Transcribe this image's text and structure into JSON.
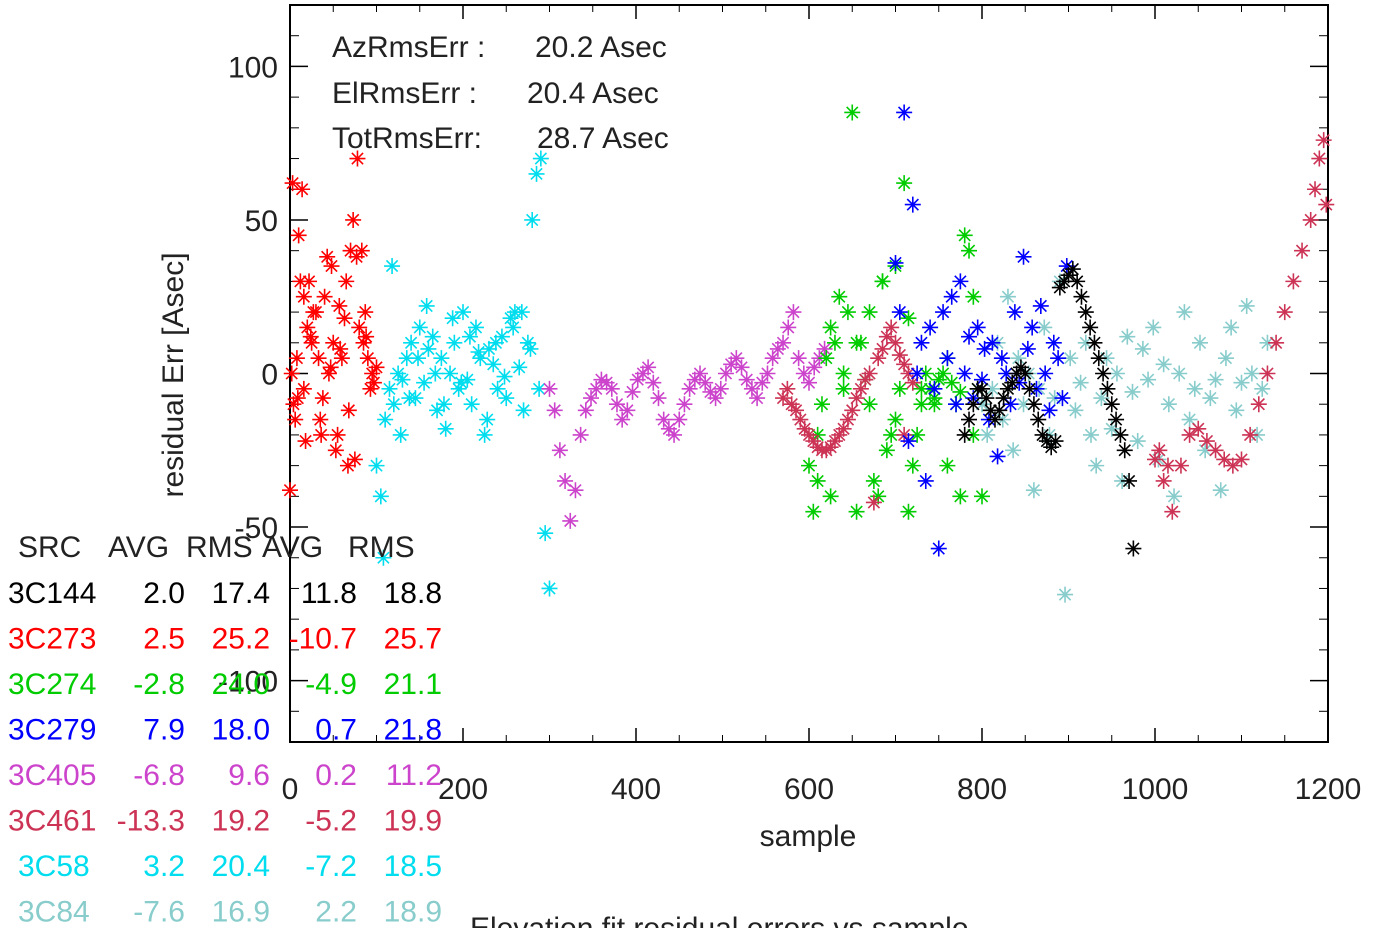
{
  "chart_data": {
    "type": "scatter",
    "title": "Elevation fit residual errors vs sample",
    "xlabel": "sample",
    "ylabel": "residual Err [Asec]",
    "xlim": [
      0,
      1200
    ],
    "ylim": [
      -120,
      120
    ],
    "x_ticks": [
      0,
      200,
      400,
      600,
      800,
      1000,
      1200
    ],
    "y_ticks": [
      -100,
      -50,
      0,
      50,
      100
    ],
    "marker": "asterisk",
    "grid": false,
    "stats": [
      {
        "label": "AzRmsErr :",
        "value": "20.2 Asec"
      },
      {
        "label": "ElRmsErr :",
        "value": "20.4 Asec"
      },
      {
        "label": "TotRmsErr:",
        "value": "28.7 Asec"
      }
    ],
    "table": {
      "headers": [
        "SRC",
        "AVG",
        "RMS",
        "AVG",
        "RMS"
      ],
      "rows": [
        {
          "src": "3C144",
          "az_avg": "2.0",
          "az_rms": "17.4",
          "el_avg": "11.8",
          "el_rms": "18.8",
          "color": "#000000"
        },
        {
          "src": "3C273",
          "az_avg": "2.5",
          "az_rms": "25.2",
          "el_avg": "-10.7",
          "el_rms": "25.7",
          "color": "#ff0000"
        },
        {
          "src": "3C274",
          "az_avg": "-2.8",
          "az_rms": "24.0",
          "el_avg": "-4.9",
          "el_rms": "21.1",
          "color": "#00cc00"
        },
        {
          "src": "3C279",
          "az_avg": "7.9",
          "az_rms": "18.0",
          "el_avg": "0.7",
          "el_rms": "21.8",
          "color": "#0000ff"
        },
        {
          "src": "3C405",
          "az_avg": "-6.8",
          "az_rms": "9.6",
          "el_avg": "0.2",
          "el_rms": "11.2",
          "color": "#cc44cc"
        },
        {
          "src": "3C461",
          "az_avg": "-13.3",
          "az_rms": "19.2",
          "el_avg": "-5.2",
          "el_rms": "19.9",
          "color": "#cc3355"
        },
        {
          "src": "3C58",
          "az_avg": "3.2",
          "az_rms": "20.4",
          "el_avg": "-7.2",
          "el_rms": "18.5",
          "color": "#00ddee"
        },
        {
          "src": "3C84",
          "az_avg": "-7.6",
          "az_rms": "16.9",
          "el_avg": "2.2",
          "el_rms": "18.9",
          "color": "#88cccc"
        }
      ]
    },
    "series": [
      {
        "source": "3C273",
        "color": "#ff0000",
        "x": [
          0,
          4,
          8,
          12,
          16,
          20,
          25,
          30,
          35,
          40,
          45,
          50,
          55,
          60,
          65,
          70,
          75,
          80,
          85,
          90,
          95,
          100,
          3,
          10,
          18,
          27,
          38,
          48,
          58,
          68,
          78,
          88,
          6,
          14,
          22,
          33,
          43,
          53,
          63,
          73,
          83,
          93,
          2,
          9,
          16,
          24,
          36,
          47,
          57,
          67,
          77,
          87,
          97
        ],
        "y": [
          -38,
          -10,
          5,
          30,
          -5,
          15,
          10,
          20,
          -15,
          25,
          0,
          10,
          -20,
          5,
          30,
          40,
          -28,
          15,
          10,
          5,
          0,
          2,
          62,
          45,
          -22,
          20,
          -8,
          35,
          8,
          -12,
          70,
          12,
          -15,
          60,
          30,
          5,
          38,
          -25,
          18,
          50,
          40,
          -5,
          0,
          -8,
          25,
          12,
          -20,
          2,
          22,
          -30,
          38,
          20,
          -3
        ]
      },
      {
        "source": "3C58",
        "color": "#00ddee",
        "x": [
          100,
          105,
          110,
          115,
          120,
          125,
          130,
          135,
          140,
          145,
          150,
          155,
          160,
          165,
          170,
          175,
          180,
          185,
          190,
          195,
          200,
          205,
          210,
          215,
          220,
          225,
          230,
          235,
          240,
          245,
          250,
          255,
          260,
          265,
          270,
          275,
          280,
          285,
          290,
          295,
          300,
          108,
          118,
          128,
          138,
          148,
          158,
          168,
          178,
          188,
          198,
          208,
          218,
          228,
          238,
          248,
          258,
          268,
          278,
          288
        ],
        "y": [
          -30,
          -40,
          -15,
          -5,
          -10,
          0,
          -2,
          5,
          10,
          -8,
          15,
          -3,
          8,
          12,
          -12,
          5,
          -18,
          0,
          10,
          -5,
          20,
          -2,
          -10,
          15,
          5,
          -20,
          8,
          3,
          -5,
          12,
          -8,
          18,
          20,
          2,
          -12,
          10,
          50,
          65,
          70,
          -52,
          -70,
          -60,
          35,
          -20,
          -8,
          5,
          22,
          0,
          -10,
          18,
          -3,
          12,
          7,
          -15,
          10,
          -1,
          15,
          20,
          8,
          -5
        ]
      },
      {
        "source": "3C405",
        "color": "#cc44cc",
        "x": [
          300,
          306,
          312,
          318,
          324,
          330,
          336,
          342,
          348,
          354,
          360,
          366,
          372,
          378,
          384,
          390,
          396,
          402,
          408,
          414,
          420,
          426,
          432,
          438,
          444,
          450,
          456,
          462,
          468,
          474,
          480,
          486,
          492,
          498,
          504,
          510,
          516,
          522,
          528,
          534,
          540,
          546,
          552,
          558,
          564,
          570,
          576,
          582,
          588,
          594,
          600,
          606,
          612,
          618
        ],
        "y": [
          -5,
          -12,
          -25,
          -35,
          -48,
          -38,
          -20,
          -12,
          -8,
          -5,
          -2,
          -3,
          -5,
          -10,
          -15,
          -12,
          -6,
          -2,
          0,
          2,
          -3,
          -8,
          -15,
          -18,
          -20,
          -15,
          -10,
          -5,
          -2,
          0,
          -3,
          -6,
          -8,
          -5,
          0,
          3,
          5,
          2,
          -2,
          -5,
          -8,
          -3,
          0,
          5,
          8,
          10,
          15,
          20,
          5,
          0,
          -3,
          2,
          5,
          8
        ]
      },
      {
        "source": "3C274",
        "color": "#00cc00",
        "x": [
          600,
          605,
          610,
          615,
          620,
          625,
          630,
          635,
          640,
          645,
          650,
          655,
          660,
          665,
          670,
          675,
          680,
          685,
          690,
          695,
          700,
          705,
          710,
          715,
          720,
          725,
          730,
          735,
          740,
          745,
          750,
          755,
          760,
          765,
          770,
          775,
          780,
          785,
          790,
          795,
          800,
          610,
          625,
          640,
          655,
          670,
          685,
          700,
          715,
          730,
          745,
          760,
          775,
          790
        ],
        "y": [
          -30,
          -45,
          -20,
          -10,
          5,
          15,
          10,
          25,
          -5,
          20,
          85,
          -45,
          10,
          -2,
          -10,
          -35,
          -40,
          30,
          -25,
          -20,
          -15,
          -5,
          62,
          -45,
          -30,
          -20,
          -10,
          0,
          -5,
          -8,
          -2,
          0,
          5,
          -3,
          -10,
          -6,
          45,
          40,
          25,
          -5,
          -40,
          -35,
          -40,
          0,
          10,
          20,
          30,
          35,
          18,
          -5,
          -10,
          -30,
          -40,
          -20
        ]
      },
      {
        "source": "3C84",
        "color": "#88cccc",
        "x": [
          800,
          806,
          812,
          818,
          824,
          830,
          836,
          842,
          848,
          854,
          860,
          866,
          872,
          878,
          884,
          890,
          896,
          902,
          908,
          914,
          920,
          926,
          932,
          938,
          944,
          950,
          956,
          962,
          968,
          974,
          980,
          986,
          992,
          998,
          1004,
          1010,
          1016,
          1022,
          1028,
          1034,
          1040,
          1046,
          1052,
          1058,
          1064,
          1070,
          1076,
          1082,
          1088,
          1094,
          1100,
          1106,
          1112,
          1118,
          1124,
          1130
        ],
        "y": [
          -10,
          -20,
          -5,
          10,
          -15,
          25,
          -25,
          5,
          -10,
          0,
          -38,
          -5,
          15,
          -20,
          -8,
          30,
          -72,
          5,
          -12,
          -3,
          10,
          -20,
          -30,
          -8,
          5,
          -18,
          0,
          -35,
          12,
          -6,
          -22,
          8,
          -2,
          15,
          -28,
          3,
          -10,
          -40,
          0,
          20,
          -15,
          -5,
          10,
          -25,
          -8,
          -2,
          -38,
          5,
          15,
          -12,
          -3,
          22,
          0,
          -20,
          -5,
          10
        ]
      },
      {
        "source": "3C461",
        "color": "#cc3355",
        "x": [
          570,
          575,
          580,
          585,
          590,
          595,
          600,
          605,
          610,
          615,
          620,
          625,
          630,
          635,
          640,
          645,
          650,
          655,
          660,
          665,
          670,
          675,
          680,
          685,
          690,
          695,
          700,
          705,
          710,
          715,
          720,
          1000,
          1010,
          1020,
          1030,
          1040,
          1050,
          1060,
          1070,
          1080,
          1090,
          1100,
          1110,
          1120,
          1130,
          1140,
          1150,
          1160,
          1170,
          1180,
          1185,
          1190,
          1195,
          1198,
          710,
          1005,
          1015
        ],
        "y": [
          -8,
          -5,
          -10,
          -12,
          -15,
          -18,
          -20,
          -22,
          -24,
          -25,
          -25,
          -24,
          -22,
          -20,
          -18,
          -15,
          -12,
          -8,
          -5,
          -2,
          0,
          -42,
          5,
          8,
          12,
          15,
          10,
          6,
          3,
          0,
          -3,
          -28,
          -35,
          -45,
          -30,
          -20,
          -18,
          -22,
          -25,
          -28,
          -30,
          -28,
          -20,
          -10,
          0,
          10,
          20,
          30,
          40,
          50,
          60,
          70,
          76,
          55,
          -20,
          -25,
          -30
        ]
      },
      {
        "source": "3C279",
        "color": "#0000ff",
        "x": [
          700,
          705,
          710,
          715,
          720,
          725,
          730,
          735,
          740,
          745,
          750,
          755,
          760,
          765,
          770,
          775,
          780,
          785,
          790,
          795,
          800,
          803,
          808,
          812,
          818,
          823,
          828,
          833,
          838,
          843,
          848,
          853,
          858,
          863,
          868,
          873,
          878,
          883,
          888,
          893,
          898
        ],
        "y": [
          36,
          20,
          85,
          -22,
          55,
          0,
          10,
          -35,
          15,
          -5,
          -57,
          20,
          5,
          25,
          -10,
          30,
          0,
          12,
          -8,
          15,
          -2,
          8,
          -15,
          10,
          -27,
          5,
          0,
          -10,
          20,
          -3,
          38,
          8,
          15,
          -5,
          22,
          0,
          -12,
          10,
          5,
          -8,
          35
        ]
      },
      {
        "source": "3C144",
        "color": "#000000",
        "x": [
          780,
          785,
          790,
          795,
          800,
          805,
          810,
          815,
          820,
          825,
          830,
          835,
          840,
          845,
          850,
          855,
          860,
          865,
          870,
          875,
          880,
          885,
          890,
          895,
          900,
          905,
          910,
          915,
          920,
          925,
          930,
          935,
          940,
          945,
          950,
          955,
          960,
          965,
          970,
          975
        ],
        "y": [
          -20,
          -15,
          -10,
          -5,
          -5,
          -8,
          -12,
          -15,
          -12,
          -8,
          -5,
          -3,
          0,
          2,
          0,
          -5,
          -10,
          -15,
          -20,
          -22,
          -24,
          -22,
          28,
          30,
          32,
          34,
          30,
          25,
          20,
          15,
          10,
          5,
          0,
          -5,
          -10,
          -15,
          -20,
          -25,
          -35,
          -57
        ]
      }
    ]
  }
}
